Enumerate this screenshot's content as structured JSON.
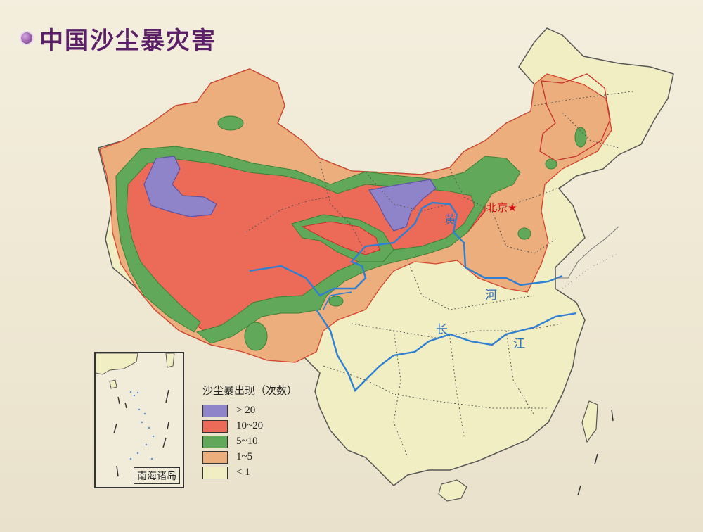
{
  "title": "中国沙尘暴灾害",
  "legend": {
    "title": "沙尘暴出现（次数）",
    "items": [
      {
        "label": "> 20",
        "color": "#8f84c9"
      },
      {
        "label": "10~20",
        "color": "#ec6a58"
      },
      {
        "label": "5~10",
        "color": "#62a85a"
      },
      {
        "label": "1~5",
        "color": "#ecae7c"
      },
      {
        "label": "< 1",
        "color": "#f2eec3"
      }
    ]
  },
  "inset_label": "南海诸岛",
  "capital": "北京★",
  "rivers": {
    "huanghe": [
      "黄",
      "河"
    ],
    "changjiang": [
      "长",
      "江"
    ]
  },
  "colors": {
    "river": "#2f7fd3",
    "border": "#555555",
    "capital": "#d8121a",
    "title": "#5a1f66"
  }
}
